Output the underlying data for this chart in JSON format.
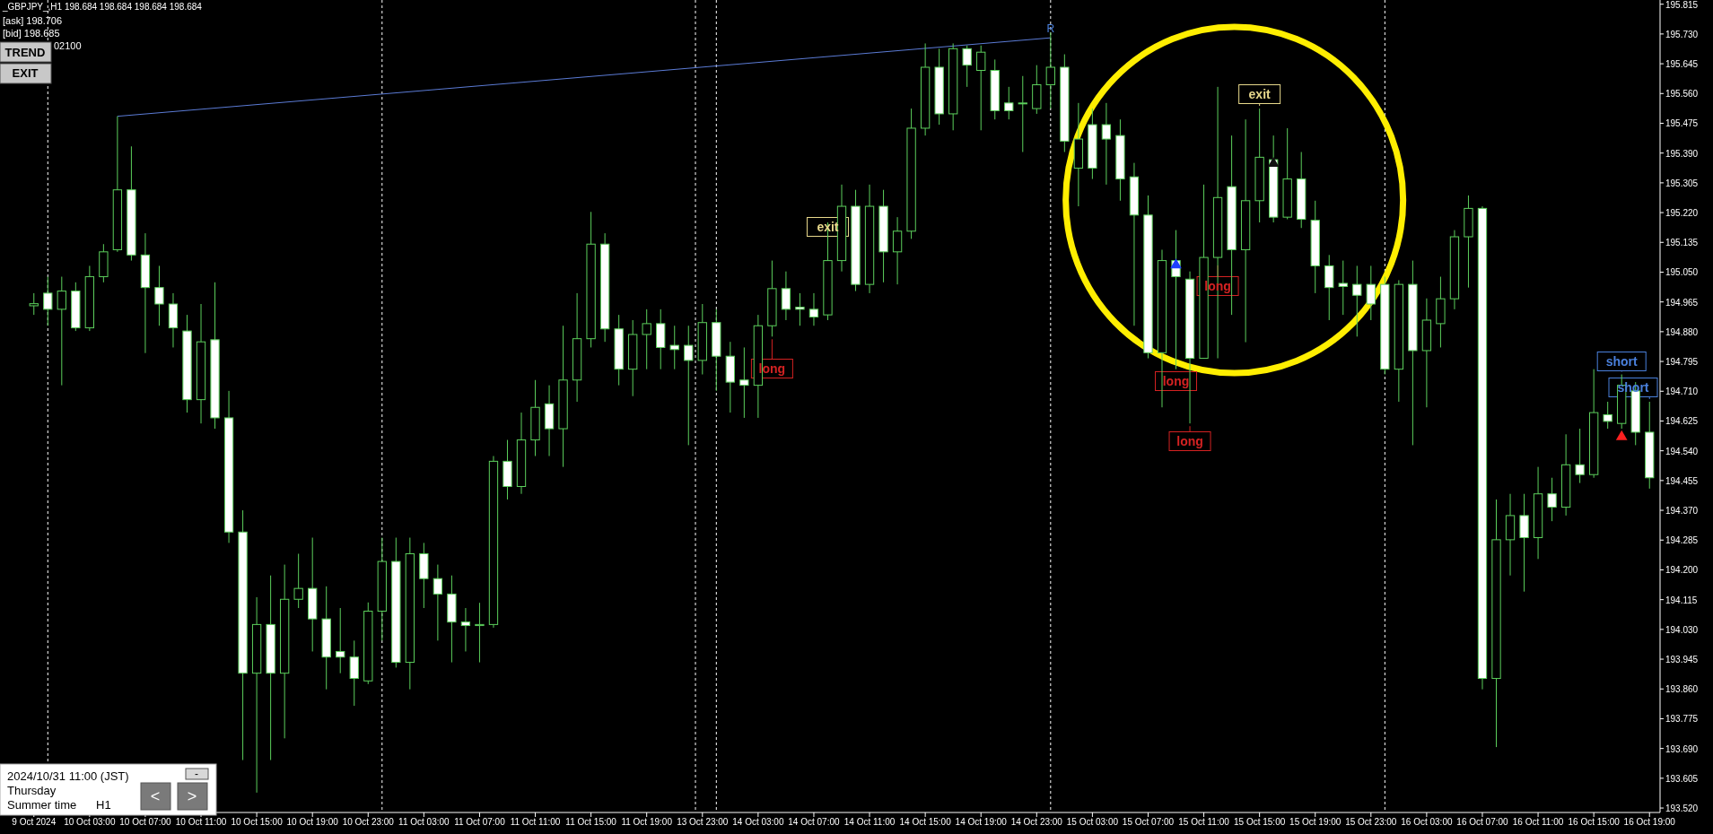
{
  "chart_data": {
    "type": "candlestick",
    "color": "#5ccf5c",
    "categories": [
      "9 Oct 2024",
      null,
      null,
      null,
      "10 Oct 03:00",
      null,
      null,
      null,
      "10 Oct 07:00",
      null,
      null,
      null,
      "10 Oct 11:00",
      null,
      null,
      null,
      "10 Oct 15:00",
      null,
      null,
      null,
      "10 Oct 19:00",
      null,
      null,
      null,
      "10 Oct 23:00",
      null,
      null,
      null,
      "11 Oct 03:00",
      null,
      null,
      null,
      "11 Oct 07:00",
      null,
      null,
      null,
      "11 Oct 11:00",
      null,
      null,
      null,
      "11 Oct 15:00",
      null,
      null,
      null,
      "11 Oct 19:00",
      null,
      null,
      null,
      "13 Oct 23:00",
      null,
      null,
      null,
      "14 Oct 03:00",
      null,
      null,
      null,
      "14 Oct 07:00",
      null,
      null,
      null,
      "14 Oct 11:00",
      null,
      null,
      null,
      "14 Oct 15:00",
      null,
      null,
      null,
      "14 Oct 19:00",
      null,
      null,
      null,
      "14 Oct 23:00",
      null,
      null,
      null,
      "15 Oct 03:00",
      null,
      null,
      null,
      "15 Oct 07:00",
      null,
      null,
      null,
      "15 Oct 11:00",
      null,
      null,
      null,
      "15 Oct 15:00",
      null,
      null,
      null,
      "15 Oct 19:00",
      null,
      null,
      null,
      "15 Oct 23:00",
      null,
      null,
      null,
      "16 Oct 03:00",
      null,
      null,
      null,
      "16 Oct 07:00",
      null,
      null,
      null,
      "16 Oct 11:00",
      null,
      null,
      null,
      "16 Oct 15:00",
      null,
      null,
      null,
      "16 Oct 19:00"
    ],
    "ohlc": [
      [
        194.954,
        194.99,
        194.928,
        194.96
      ],
      [
        194.99,
        195.037,
        194.897,
        194.944
      ],
      [
        194.944,
        195.037,
        194.727,
        194.996
      ],
      [
        194.996,
        195.021,
        194.882,
        194.891
      ],
      [
        194.891,
        195.068,
        194.882,
        195.037
      ],
      [
        195.037,
        195.13,
        195.021,
        195.108
      ],
      [
        195.114,
        195.495,
        195.108,
        195.285
      ],
      [
        195.285,
        195.409,
        195.083,
        195.099
      ],
      [
        195.099,
        195.161,
        194.819,
        195.006
      ],
      [
        195.006,
        195.068,
        194.897,
        194.959
      ],
      [
        194.959,
        194.99,
        194.835,
        194.891
      ],
      [
        194.882,
        194.928,
        194.649,
        194.686
      ],
      [
        194.686,
        194.959,
        194.618,
        194.851
      ],
      [
        194.857,
        195.021,
        194.603,
        194.634
      ],
      [
        194.634,
        194.711,
        194.277,
        194.308
      ],
      [
        194.308,
        194.37,
        193.657,
        193.905
      ],
      [
        193.905,
        194.122,
        193.564,
        194.044
      ],
      [
        194.044,
        194.184,
        193.657,
        193.905
      ],
      [
        193.905,
        194.215,
        193.719,
        194.116
      ],
      [
        194.116,
        194.246,
        194.091,
        194.147
      ],
      [
        194.147,
        194.292,
        193.967,
        194.06
      ],
      [
        194.06,
        194.153,
        193.859,
        193.951
      ],
      [
        193.967,
        194.091,
        193.905,
        193.951
      ],
      [
        193.951,
        193.998,
        193.812,
        193.89
      ],
      [
        193.883,
        194.107,
        193.874,
        194.082
      ],
      [
        194.082,
        194.292,
        193.998,
        194.224
      ],
      [
        194.224,
        194.292,
        193.921,
        193.936
      ],
      [
        193.936,
        194.292,
        193.859,
        194.246
      ],
      [
        194.246,
        194.277,
        194.091,
        194.175
      ],
      [
        194.175,
        194.215,
        193.998,
        194.131
      ],
      [
        194.131,
        194.184,
        193.936,
        194.051
      ],
      [
        194.051,
        194.091,
        193.967,
        194.041
      ],
      [
        194.041,
        194.106,
        193.936,
        194.044
      ],
      [
        194.044,
        194.525,
        194.035,
        194.51
      ],
      [
        194.51,
        194.571,
        194.401,
        194.438
      ],
      [
        194.438,
        194.649,
        194.417,
        194.571
      ],
      [
        194.571,
        194.742,
        194.525,
        194.664
      ],
      [
        194.674,
        194.727,
        194.525,
        194.603
      ],
      [
        194.603,
        194.897,
        194.494,
        194.742
      ],
      [
        194.742,
        194.99,
        194.68,
        194.86
      ],
      [
        194.86,
        195.222,
        194.835,
        195.13
      ],
      [
        195.13,
        195.161,
        194.851,
        194.888
      ],
      [
        194.888,
        194.928,
        194.727,
        194.773
      ],
      [
        194.773,
        194.913,
        194.696,
        194.872
      ],
      [
        194.872,
        194.944,
        194.773,
        194.903
      ],
      [
        194.903,
        194.944,
        194.773,
        194.835
      ],
      [
        194.841,
        194.897,
        194.773,
        194.829
      ],
      [
        194.841,
        194.897,
        194.556,
        194.798
      ],
      [
        194.798,
        194.959,
        194.758,
        194.906
      ],
      [
        194.906,
        194.944,
        194.711,
        194.81
      ],
      [
        194.81,
        194.851,
        194.649,
        194.736
      ],
      [
        194.742,
        194.835,
        194.634,
        194.727
      ],
      [
        194.727,
        194.928,
        194.634,
        194.897
      ],
      [
        194.897,
        195.083,
        194.866,
        195.003
      ],
      [
        195.003,
        195.052,
        194.913,
        194.944
      ],
      [
        194.95,
        194.99,
        194.897,
        194.944
      ],
      [
        194.944,
        194.99,
        194.897,
        194.922
      ],
      [
        194.928,
        195.192,
        194.913,
        195.083
      ],
      [
        195.083,
        195.3,
        195.052,
        195.238
      ],
      [
        195.238,
        195.285,
        194.996,
        195.015
      ],
      [
        195.015,
        195.3,
        194.99,
        195.238
      ],
      [
        195.238,
        195.285,
        195.021,
        195.108
      ],
      [
        195.108,
        195.207,
        195.015,
        195.167
      ],
      [
        195.167,
        195.517,
        195.145,
        195.461
      ],
      [
        195.461,
        195.703,
        195.44,
        195.635
      ],
      [
        195.635,
        195.688,
        195.471,
        195.502
      ],
      [
        195.502,
        195.703,
        195.455,
        195.688
      ],
      [
        195.688,
        195.697,
        195.579,
        195.641
      ],
      [
        195.626,
        195.697,
        195.455,
        195.678
      ],
      [
        195.626,
        195.657,
        195.486,
        195.511
      ],
      [
        195.533,
        195.579,
        195.486,
        195.511
      ],
      [
        195.532,
        195.61,
        195.393,
        195.533
      ],
      [
        195.517,
        195.641,
        195.502,
        195.585
      ],
      [
        195.585,
        195.734,
        195.517,
        195.635
      ],
      [
        195.635,
        195.672,
        195.393,
        195.424
      ],
      [
        195.347,
        195.533,
        195.238,
        195.43
      ],
      [
        195.471,
        195.517,
        195.316,
        195.347
      ],
      [
        195.471,
        195.533,
        195.3,
        195.43
      ],
      [
        195.44,
        195.486,
        195.254,
        195.316
      ],
      [
        195.322,
        195.362,
        194.897,
        195.213
      ],
      [
        195.213,
        195.269,
        194.804,
        194.82
      ],
      [
        194.82,
        195.114,
        194.664,
        195.083
      ],
      [
        195.083,
        195.17,
        194.773,
        195.037
      ],
      [
        195.03,
        195.052,
        194.618,
        194.804
      ],
      [
        194.804,
        195.3,
        194.804,
        195.092
      ],
      [
        195.092,
        195.579,
        194.804,
        195.263
      ],
      [
        195.294,
        195.44,
        194.928,
        195.114
      ],
      [
        195.114,
        195.486,
        194.85,
        195.254
      ],
      [
        195.254,
        195.517,
        195.192,
        195.378
      ],
      [
        195.371,
        195.44,
        195.192,
        195.207
      ],
      [
        195.207,
        195.461,
        195.201,
        195.316
      ],
      [
        195.316,
        195.393,
        195.176,
        195.201
      ],
      [
        195.198,
        195.254,
        194.99,
        195.068
      ],
      [
        195.068,
        195.099,
        194.913,
        195.006
      ],
      [
        195.018,
        195.083,
        194.928,
        195.009
      ],
      [
        195.015,
        195.068,
        194.866,
        194.984
      ],
      [
        195.015,
        195.068,
        194.913,
        194.959
      ],
      [
        195.015,
        195.037,
        194.758,
        194.773
      ],
      [
        194.773,
        195.027,
        194.68,
        195.015
      ],
      [
        195.015,
        195.083,
        194.556,
        194.826
      ],
      [
        194.826,
        194.975,
        194.664,
        194.913
      ],
      [
        194.903,
        195.037,
        194.835,
        194.974
      ],
      [
        194.974,
        195.17,
        194.944,
        195.151
      ],
      [
        195.151,
        195.269,
        195.006,
        195.232
      ],
      [
        195.232,
        195.238,
        193.859,
        193.89
      ],
      [
        193.89,
        194.401,
        193.694,
        194.286
      ],
      [
        194.286,
        194.417,
        194.184,
        194.355
      ],
      [
        194.355,
        194.417,
        194.138,
        194.292
      ],
      [
        194.292,
        194.494,
        194.231,
        194.417
      ],
      [
        194.417,
        194.463,
        194.339,
        194.379
      ],
      [
        194.379,
        194.587,
        194.355,
        194.5
      ],
      [
        194.5,
        194.603,
        194.448,
        194.472
      ],
      [
        194.472,
        194.773,
        194.463,
        194.649
      ],
      [
        194.643,
        194.68,
        194.603,
        194.624
      ],
      [
        194.618,
        194.758,
        194.603,
        194.727
      ],
      [
        194.711,
        194.736,
        194.556,
        194.593
      ],
      [
        194.593,
        194.68,
        194.432,
        194.463
      ]
    ],
    "series": [
      {
        "type": "line",
        "color": "#5b7bd5",
        "values": [
          null,
          null,
          null,
          null,
          null,
          null,
          195.495,
          null,
          null,
          null,
          null,
          null,
          null,
          null,
          null,
          null,
          null,
          null,
          null,
          null,
          null,
          null,
          null,
          null,
          null,
          null,
          null,
          null,
          null,
          null,
          null,
          null,
          null,
          null,
          null,
          null,
          null,
          null,
          null,
          null,
          null,
          null,
          null,
          null,
          null,
          null,
          null,
          null,
          null,
          null,
          null,
          null,
          null,
          null,
          null,
          null,
          null,
          null,
          null,
          null,
          null,
          null,
          null,
          null,
          null,
          null,
          null,
          null,
          null,
          null,
          null,
          null,
          null,
          195.719,
          null,
          null,
          null,
          null,
          null,
          null,
          null,
          null,
          null,
          null,
          null,
          null,
          null,
          null,
          null,
          null,
          null,
          null,
          null,
          null,
          null,
          null,
          null,
          null,
          null,
          null,
          null,
          null,
          null,
          null,
          null,
          null,
          null,
          null,
          null,
          null,
          null,
          null,
          null,
          null,
          null,
          null,
          null
        ]
      },
      {
        "type": "scatter",
        "marker": "triangle",
        "color": "#1f3fff",
        "values": [
          null,
          null,
          null,
          null,
          null,
          null,
          null,
          null,
          null,
          null,
          null,
          null,
          null,
          null,
          null,
          null,
          null,
          null,
          null,
          null,
          null,
          null,
          null,
          null,
          null,
          null,
          null,
          null,
          null,
          null,
          null,
          null,
          null,
          null,
          null,
          null,
          null,
          null,
          null,
          null,
          null,
          null,
          null,
          null,
          null,
          null,
          null,
          null,
          null,
          null,
          null,
          null,
          null,
          null,
          null,
          null,
          null,
          null,
          null,
          null,
          null,
          null,
          null,
          null,
          null,
          null,
          null,
          null,
          null,
          null,
          null,
          null,
          null,
          null,
          null,
          null,
          null,
          null,
          null,
          null,
          null,
          null,
          195.07,
          null,
          null,
          null,
          null,
          null,
          null,
          null,
          null,
          null,
          null,
          null,
          null,
          null,
          null,
          null,
          null,
          null,
          null,
          null,
          null,
          null,
          null,
          null,
          null,
          null,
          null,
          null,
          null,
          null,
          null,
          null,
          null,
          null,
          null
        ]
      },
      {
        "type": "scatter",
        "marker": "triangle",
        "color": "#111111",
        "values": [
          null,
          null,
          null,
          null,
          null,
          null,
          null,
          null,
          null,
          null,
          null,
          null,
          null,
          null,
          null,
          null,
          null,
          null,
          null,
          null,
          null,
          null,
          null,
          null,
          null,
          null,
          null,
          null,
          null,
          null,
          null,
          null,
          null,
          null,
          null,
          null,
          null,
          null,
          null,
          null,
          null,
          null,
          null,
          null,
          null,
          null,
          null,
          null,
          null,
          null,
          null,
          null,
          null,
          null,
          null,
          null,
          null,
          null,
          null,
          null,
          null,
          null,
          null,
          null,
          null,
          null,
          null,
          null,
          null,
          null,
          null,
          null,
          null,
          null,
          null,
          null,
          null,
          null,
          null,
          null,
          null,
          null,
          null,
          null,
          null,
          null,
          null,
          null,
          null,
          195.36,
          null,
          null,
          null,
          null,
          null,
          null,
          null,
          null,
          null,
          null,
          null,
          null,
          null,
          null,
          null,
          null,
          null,
          null,
          null,
          null,
          null,
          null,
          null,
          null,
          null,
          null,
          null
        ]
      },
      {
        "type": "scatter",
        "marker": "triangle",
        "color": "#ff2020",
        "values": [
          null,
          null,
          null,
          null,
          null,
          null,
          null,
          null,
          null,
          null,
          null,
          null,
          null,
          null,
          null,
          null,
          null,
          null,
          null,
          null,
          null,
          null,
          null,
          null,
          null,
          null,
          null,
          null,
          null,
          null,
          null,
          null,
          null,
          null,
          null,
          null,
          null,
          null,
          null,
          null,
          null,
          null,
          null,
          null,
          null,
          null,
          null,
          null,
          null,
          null,
          null,
          null,
          null,
          null,
          null,
          null,
          null,
          null,
          null,
          null,
          null,
          null,
          null,
          null,
          null,
          null,
          null,
          null,
          null,
          null,
          null,
          null,
          null,
          null,
          null,
          null,
          null,
          null,
          null,
          null,
          null,
          null,
          null,
          null,
          null,
          null,
          null,
          null,
          null,
          null,
          null,
          null,
          null,
          null,
          null,
          null,
          null,
          null,
          null,
          null,
          null,
          null,
          null,
          null,
          null,
          null,
          null,
          null,
          null,
          null,
          null,
          null,
          null,
          null,
          194.58,
          null,
          null
        ]
      }
    ],
    "grid": "x",
    "ylim": [
      193.515,
      195.827
    ],
    "yticks": [
      195.815,
      {
        "value": 195.73,
        "label": "195.730"
      },
      195.645,
      {
        "value": 195.56,
        "label": "195.560"
      },
      195.475,
      {
        "value": 195.39,
        "label": "195.390"
      },
      195.305,
      {
        "value": 195.22,
        "label": "195.220"
      },
      195.135,
      {
        "value": 195.05,
        "label": "195.050"
      },
      194.965,
      {
        "value": 194.88,
        "label": "194.880"
      },
      194.795,
      {
        "value": 194.71,
        "label": "194.710"
      },
      194.625,
      {
        "value": 194.54,
        "label": "194.540"
      },
      194.455,
      {
        "value": 194.37,
        "label": "194.370"
      },
      194.285,
      {
        "value": 194.2,
        "label": "194.200"
      },
      194.115,
      {
        "value": 194.03,
        "label": "194.030"
      },
      193.945,
      {
        "value": 193.86,
        "label": "193.860"
      },
      193.775,
      {
        "value": 193.69,
        "label": "193.690"
      },
      193.605,
      {
        "value": 193.52,
        "label": "193.520"
      }
    ],
    "annotations": [
      "_GBPJPY_,H1  198.684 198.684 198.684 198.684",
      "[ask] 198.706",
      "[bid] 198.685",
      "02100",
      "TREND",
      "EXIT",
      "2024/10/31 11:00 (JST)",
      "Thursday",
      "Summer time",
      "H1",
      "-",
      "<",
      ">",
      "R",
      {
        "text": "exit",
        "y": 195.192
      },
      {
        "text": "long",
        "y": 194.866
      },
      {
        "text": "long",
        "y": 195.077
      },
      {
        "text": "long",
        "y": 194.773
      },
      {
        "text": "long",
        "y": 194.618
      },
      {
        "text": "exit",
        "y": 195.517
      },
      {
        "text": "short",
        "y": 194.758
      },
      {
        "text": "short",
        "y": 194.68
      }
    ]
  }
}
